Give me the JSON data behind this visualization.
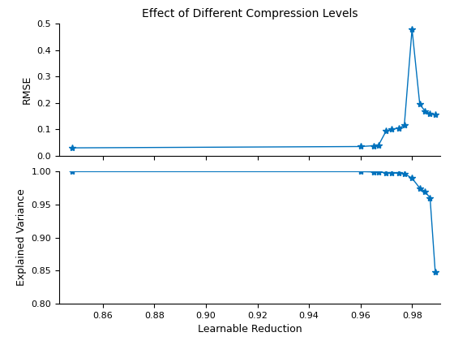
{
  "x": [
    0.848,
    0.96,
    0.965,
    0.967,
    0.97,
    0.972,
    0.975,
    0.977,
    0.98,
    0.983,
    0.985,
    0.987,
    0.989
  ],
  "rmse": [
    0.03,
    0.035,
    0.038,
    0.04,
    0.095,
    0.1,
    0.105,
    0.115,
    0.48,
    0.195,
    0.17,
    0.16,
    0.155
  ],
  "ev": [
    1.0,
    1.0,
    0.9995,
    0.999,
    0.9985,
    0.998,
    0.9975,
    0.997,
    0.99,
    0.975,
    0.97,
    0.96,
    0.848
  ],
  "title": "Effect of Different Compression Levels",
  "ylabel1": "RMSE",
  "ylabel2": "Explained Variance",
  "xlabel2": "Learnable Reduction",
  "xlim": [
    0.843,
    0.991
  ],
  "ylim1": [
    0.0,
    0.5
  ],
  "ylim2": [
    0.8,
    1.0
  ],
  "xticks": [
    0.86,
    0.88,
    0.9,
    0.92,
    0.94,
    0.96,
    0.98
  ],
  "yticks1": [
    0.0,
    0.1,
    0.2,
    0.3,
    0.4,
    0.5
  ],
  "yticks2": [
    0.8,
    0.85,
    0.9,
    0.95,
    1.0
  ],
  "line_color": "#0072BD",
  "marker": "*",
  "markersize": 6,
  "linewidth": 1.0,
  "title_fontsize": 10,
  "label_fontsize": 9,
  "tick_fontsize": 8
}
